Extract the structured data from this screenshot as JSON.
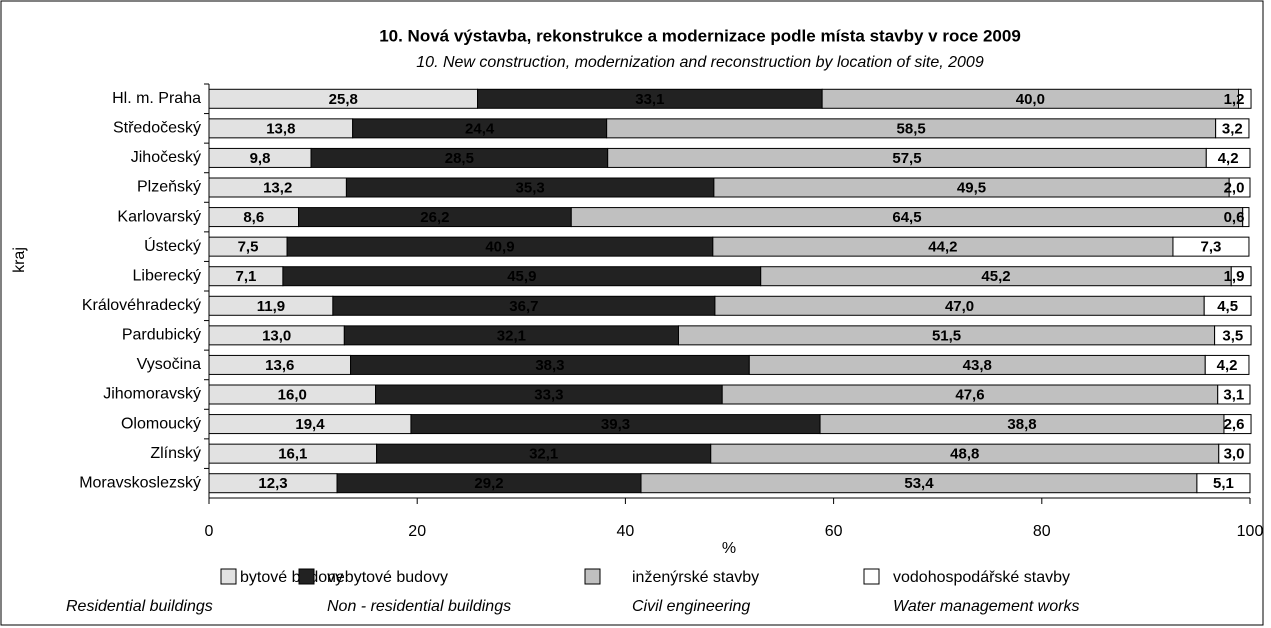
{
  "chart_data": {
    "type": "stacked_barh",
    "title": "10. Nová výstavba, rekonstrukce a modernizace podle místa stavby v roce 2009",
    "subtitle": "10. New construction, modernization and reconstruction by location of site, 2009",
    "y_label": "kraj",
    "x_label": "%",
    "categories": [
      "Hl. m. Praha",
      "Středočeský",
      "Jihočeský",
      "Plzeňský",
      "Karlovarský",
      "Ústecký",
      "Liberecký",
      "Královéhradecký",
      "Pardubický",
      "Vysočina",
      "Jihomoravský",
      "Olomoucký",
      "Zlínský",
      "Moravskoslezský"
    ],
    "series": [
      {
        "name": "bytové budovy",
        "name_en": "Residential buildings",
        "color": "#e2e2e2",
        "values": [
          25.8,
          13.8,
          9.8,
          13.2,
          8.6,
          7.5,
          7.1,
          11.9,
          13.0,
          13.6,
          16.0,
          19.4,
          16.1,
          12.3
        ],
        "value_labels": [
          "25,8",
          "13,8",
          "9,8",
          "13,2",
          "8,6",
          "7,5",
          "7,1",
          "11,9",
          "13,0",
          "13,6",
          "16,0",
          "19,4",
          "16,1",
          "12,3"
        ]
      },
      {
        "name": "nebytové budovy",
        "name_en": "Non - residential buildings",
        "color": "#222222",
        "values": [
          33.1,
          24.4,
          28.5,
          35.3,
          26.2,
          40.9,
          45.9,
          36.7,
          32.1,
          38.3,
          33.3,
          39.3,
          32.1,
          29.2
        ],
        "value_labels": [
          "33,1",
          "24,4",
          "28,5",
          "35,3",
          "26,2",
          "40,9",
          "45,9",
          "36,7",
          "32,1",
          "38,3",
          "33,3",
          "39,3",
          "32,1",
          "29,2"
        ]
      },
      {
        "name": "inženýrské stavby",
        "name_en": "Civil engineering",
        "color": "#c0c0c0",
        "values": [
          40.0,
          58.5,
          57.5,
          49.5,
          64.5,
          44.2,
          45.2,
          47.0,
          51.5,
          43.8,
          47.6,
          38.8,
          48.8,
          53.4
        ],
        "value_labels": [
          "40,0",
          "58,5",
          "57,5",
          "49,5",
          "64,5",
          "44,2",
          "45,2",
          "47,0",
          "51,5",
          "43,8",
          "47,6",
          "38,8",
          "48,8",
          "53,4"
        ]
      },
      {
        "name": "vodohospodářské stavby",
        "name_en": "Water management works",
        "color": "#ffffff",
        "values": [
          1.2,
          3.2,
          4.2,
          2.0,
          0.6,
          7.3,
          1.9,
          4.5,
          3.5,
          4.2,
          3.1,
          2.6,
          3.0,
          5.1
        ],
        "value_labels": [
          "1,2",
          "3,2",
          "4,2",
          "2,0",
          "0,6",
          "7,3",
          "1,9",
          "4,5",
          "3,5",
          "4,2",
          "3,1",
          "2,6",
          "3,0",
          "5,1"
        ]
      }
    ],
    "xlim": [
      0,
      100
    ],
    "xticks": [
      0,
      20,
      40,
      60,
      80,
      100
    ],
    "grid": false,
    "legend": "bottom"
  }
}
